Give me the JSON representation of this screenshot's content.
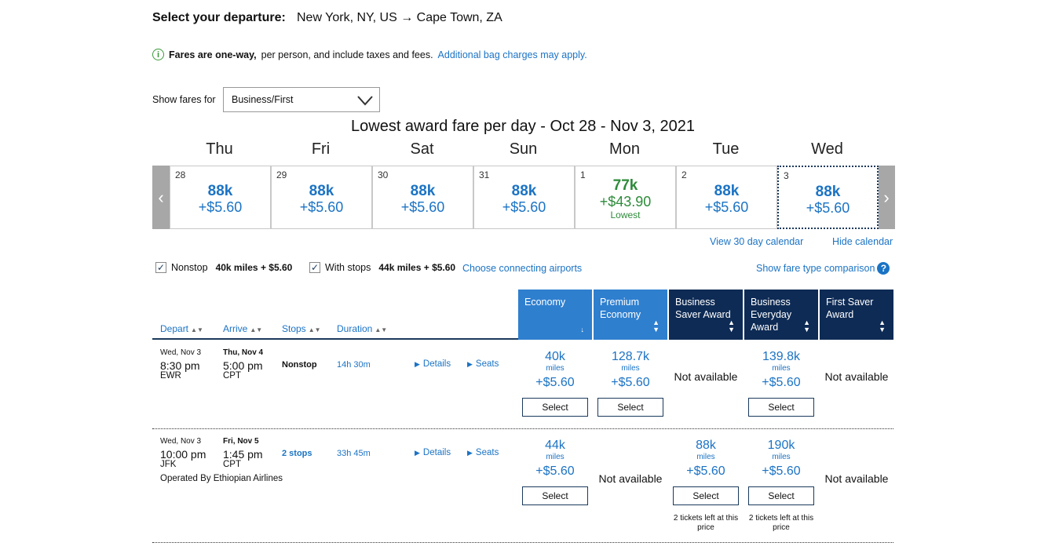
{
  "header": {
    "label": "Select your departure:",
    "route": "New York, NY, US → Cape Town, ZA"
  },
  "info": {
    "bold": "Fares are one-way,",
    "rest": "per person, and include taxes and fees.",
    "link": "Additional bag charges may apply."
  },
  "fare_filter": {
    "label": "Show fares for",
    "selected": "Business/First"
  },
  "calendar": {
    "title": "Lowest award fare per day - Oct 28 - Nov 3, 2021",
    "days": [
      {
        "name": "Thu",
        "date": "28",
        "miles": "88k",
        "tax": "+$5.60"
      },
      {
        "name": "Fri",
        "date": "29",
        "miles": "88k",
        "tax": "+$5.60"
      },
      {
        "name": "Sat",
        "date": "30",
        "miles": "88k",
        "tax": "+$5.60"
      },
      {
        "name": "Sun",
        "date": "31",
        "miles": "88k",
        "tax": "+$5.60"
      },
      {
        "name": "Mon",
        "date": "1",
        "miles": "77k",
        "tax": "+$43.90",
        "note": "Lowest"
      },
      {
        "name": "Tue",
        "date": "2",
        "miles": "88k",
        "tax": "+$5.60"
      },
      {
        "name": "Wed",
        "date": "3",
        "miles": "88k",
        "tax": "+$5.60"
      }
    ],
    "view30": "View 30 day calendar",
    "hide": "Hide calendar"
  },
  "filters": {
    "nonstop_label": "Nonstop",
    "nonstop_price": "40k miles + $5.60",
    "stops_label": "With stops",
    "stops_price": "44k miles + $5.60",
    "connecting": "Choose connecting airports",
    "fare_compare": "Show fare type comparison",
    "help": "?"
  },
  "columns": {
    "depart": "Depart",
    "arrive": "Arrive",
    "stops": "Stops",
    "duration": "Duration",
    "economy": "Economy",
    "premium_1": "Premium",
    "premium_2": "Economy",
    "bsaver_1": "Business",
    "bsaver_2": "Saver Award",
    "beveryday_1": "Business",
    "beveryday_2": "Everyday",
    "beveryday_3": "Award",
    "fsaver_1": "First Saver",
    "fsaver_2": "Award"
  },
  "flights": [
    {
      "dep_date": "Wed, Nov 3",
      "dep_time": "8:30 pm",
      "dep_airport": "EWR",
      "arr_date": "Thu, Nov 4",
      "arr_time": "5:00 pm",
      "arr_airport": "CPT",
      "stops": "Nonstop",
      "duration": "14h 30m",
      "details": "Details",
      "seats": "Seats",
      "economy": {
        "miles": "40k",
        "unit": "miles",
        "tax": "+$5.60",
        "select": "Select"
      },
      "premium": {
        "miles": "128.7k",
        "unit": "miles",
        "tax": "+$5.60",
        "select": "Select"
      },
      "bsaver": "Not available",
      "beveryday": {
        "miles": "139.8k",
        "unit": "miles",
        "tax": "+$5.60",
        "select": "Select"
      },
      "fsaver": "Not available"
    },
    {
      "dep_date": "Wed, Nov 3",
      "dep_time": "10:00 pm",
      "dep_airport": "JFK",
      "arr_date": "Fri, Nov 5",
      "arr_time": "1:45 pm",
      "arr_airport": "CPT",
      "stops": "2 stops",
      "duration": "33h 45m",
      "details": "Details",
      "seats": "Seats",
      "operated": "Operated By Ethiopian Airlines",
      "economy": {
        "miles": "44k",
        "unit": "miles",
        "tax": "+$5.60",
        "select": "Select"
      },
      "premium": "Not available",
      "bsaver": {
        "miles": "88k",
        "unit": "miles",
        "tax": "+$5.60",
        "select": "Select",
        "left_1": "2 tickets left at this",
        "left_2": "price"
      },
      "beveryday": {
        "miles": "190k",
        "unit": "miles",
        "tax": "+$5.60",
        "select": "Select",
        "left_1": "2 tickets left at this",
        "left_2": "price"
      },
      "fsaver": "Not available"
    }
  ],
  "colors": {
    "link": "#1b73c4",
    "lowest": "#2e8b3a",
    "header_light": "#2f7fcf",
    "header_dark": "#0e2b55"
  }
}
